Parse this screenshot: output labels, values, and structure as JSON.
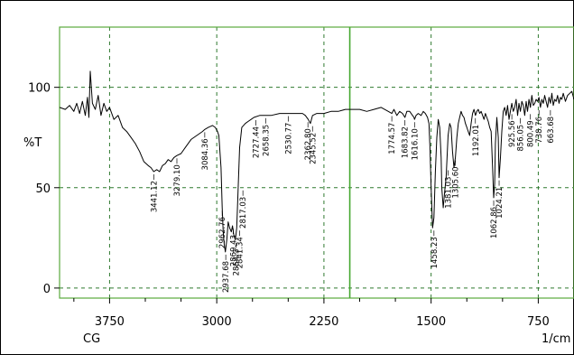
{
  "chart_data": {
    "type": "line",
    "title": "",
    "ylabel": "%T",
    "xlabel_left": "CG",
    "xlabel_right": "1/cm",
    "xlim": [
      4100,
      500
    ],
    "ylim": [
      -5,
      130
    ],
    "x_ticks": [
      3750,
      3000,
      2250,
      1500,
      750
    ],
    "x_tick_labels": [
      "3750",
      "3000",
      "2250",
      "1500",
      "750"
    ],
    "y_ticks": [
      0,
      50,
      100
    ],
    "y_tick_labels": [
      "0",
      "50",
      "100"
    ],
    "grid": true,
    "colors": {
      "spectrum": "#000000",
      "grid": "#2f7a2f",
      "axis": "#5aaa3c",
      "marker": "#46a830"
    },
    "marker_x": 2069,
    "spectrum": {
      "x": [
        4100,
        4060,
        4030,
        4000,
        3980,
        3960,
        3940,
        3920,
        3905,
        3895,
        3885,
        3870,
        3850,
        3830,
        3810,
        3790,
        3770,
        3750,
        3720,
        3690,
        3660,
        3630,
        3600,
        3570,
        3540,
        3510,
        3480,
        3460,
        3441,
        3420,
        3400,
        3380,
        3360,
        3340,
        3320,
        3300,
        3279,
        3250,
        3220,
        3180,
        3140,
        3100,
        3084,
        3060,
        3030,
        3010,
        2995,
        2985,
        2970,
        2962,
        2955,
        2948,
        2940,
        2930,
        2920,
        2910,
        2898,
        2890,
        2880,
        2870,
        2860,
        2850,
        2840,
        2825,
        2800,
        2780,
        2760,
        2740,
        2700,
        2660,
        2620,
        2560,
        2500,
        2450,
        2400,
        2380,
        2360,
        2345,
        2330,
        2300,
        2250,
        2200,
        2150,
        2100,
        2069,
        2000,
        1950,
        1900,
        1850,
        1800,
        1775,
        1760,
        1740,
        1720,
        1700,
        1683,
        1670,
        1650,
        1630,
        1620,
        1616,
        1605,
        1590,
        1570,
        1555,
        1540,
        1525,
        1515,
        1508,
        1500,
        1490,
        1480,
        1470,
        1460,
        1450,
        1440,
        1430,
        1425,
        1415,
        1405,
        1395,
        1381,
        1370,
        1360,
        1350,
        1340,
        1330,
        1320,
        1310,
        1300,
        1290,
        1280,
        1270,
        1260,
        1250,
        1240,
        1230,
        1220,
        1210,
        1200,
        1190,
        1180,
        1170,
        1160,
        1150,
        1140,
        1130,
        1120,
        1110,
        1100,
        1090,
        1080,
        1070,
        1062,
        1055,
        1050,
        1040,
        1030,
        1024,
        1015,
        1005,
        995,
        985,
        975,
        965,
        955,
        945,
        935,
        925,
        915,
        905,
        895,
        885,
        875,
        865,
        855,
        845,
        835,
        825,
        815,
        805,
        795,
        785,
        775,
        765,
        755,
        745,
        735,
        725,
        715,
        705,
        695,
        685,
        675,
        665,
        655,
        645,
        635,
        625,
        615,
        605,
        595,
        585,
        575,
        560,
        545,
        530,
        515,
        500
      ],
      "y": [
        90,
        89,
        91,
        88,
        92,
        87,
        93,
        86,
        95,
        85,
        108,
        92,
        89,
        96,
        86,
        92,
        88,
        90,
        84,
        86,
        80,
        78,
        75,
        72,
        68,
        63,
        61,
        60,
        58,
        59,
        58,
        61,
        62,
        64,
        63,
        65,
        66,
        67,
        70,
        74,
        76,
        78,
        79,
        80,
        81,
        80,
        78,
        76,
        60,
        40,
        28,
        22,
        18,
        24,
        33,
        30,
        28,
        31,
        26,
        24,
        30,
        50,
        70,
        80,
        82,
        83,
        84,
        85,
        86,
        86,
        86,
        87,
        87,
        87,
        87,
        86,
        84,
        82,
        86,
        87,
        87,
        88,
        88,
        89,
        89,
        89,
        88,
        89,
        90,
        88,
        87,
        89,
        86,
        88,
        87,
        85,
        88,
        88,
        86,
        85,
        84,
        86,
        87,
        86,
        88,
        87,
        85,
        82,
        70,
        50,
        30,
        35,
        58,
        75,
        84,
        80,
        65,
        50,
        40,
        48,
        55,
        76,
        82,
        80,
        68,
        60,
        65,
        75,
        82,
        85,
        88,
        86,
        85,
        82,
        80,
        78,
        76,
        82,
        87,
        89,
        86,
        88,
        89,
        87,
        88,
        86,
        84,
        87,
        85,
        83,
        80,
        78,
        60,
        45,
        52,
        72,
        85,
        75,
        55,
        65,
        78,
        88,
        90,
        86,
        91,
        84,
        88,
        92,
        88,
        90,
        94,
        86,
        92,
        88,
        93,
        91,
        86,
        93,
        88,
        94,
        90,
        96,
        91,
        92,
        94,
        93,
        95,
        90,
        94,
        92,
        96,
        93,
        90,
        95,
        92,
        97,
        91,
        94,
        93,
        96,
        92,
        95,
        94,
        97,
        93,
        96,
        97,
        98,
        94
      ]
    },
    "peak_labels": [
      {
        "text": "3441.12",
        "x": 3441,
        "y": 58,
        "side": "below"
      },
      {
        "text": "3279.10",
        "x": 3279,
        "y": 66,
        "side": "below"
      },
      {
        "text": "3084.36",
        "x": 3084,
        "y": 79,
        "side": "below"
      },
      {
        "text": "2962.76",
        "x": 2962,
        "y": 40,
        "side": "below"
      },
      {
        "text": "2937.68",
        "x": 2937,
        "y": 18,
        "side": "below"
      },
      {
        "text": "2869.43",
        "x": 2885,
        "y": 31,
        "side": "below"
      },
      {
        "text": "2854.3",
        "x": 2864,
        "y": 24,
        "side": "below"
      },
      {
        "text": "2841.34",
        "x": 2841,
        "y": 30,
        "side": "below"
      },
      {
        "text": "2817.03",
        "x": 2817,
        "y": 50,
        "side": "below"
      },
      {
        "text": "2727.44",
        "x": 2727,
        "y": 85,
        "side": "below"
      },
      {
        "text": "2658.35",
        "x": 2658,
        "y": 86,
        "side": "below"
      },
      {
        "text": "2530.77",
        "x": 2500,
        "y": 87,
        "side": "below"
      },
      {
        "text": "2362.80",
        "x": 2362,
        "y": 84,
        "side": "below"
      },
      {
        "text": "2345.52",
        "x": 2330,
        "y": 82,
        "side": "below"
      },
      {
        "text": "1774.57",
        "x": 1775,
        "y": 87,
        "side": "below"
      },
      {
        "text": "1683.82",
        "x": 1683,
        "y": 85,
        "side": "below"
      },
      {
        "text": "1616.10",
        "x": 1616,
        "y": 84,
        "side": "below"
      },
      {
        "text": "1458.23",
        "x": 1480,
        "y": 30,
        "side": "below"
      },
      {
        "text": "1381.03",
        "x": 1381,
        "y": 60,
        "side": "below"
      },
      {
        "text": "1305.60",
        "x": 1330,
        "y": 65,
        "side": "below"
      },
      {
        "text": "1192.01",
        "x": 1190,
        "y": 86,
        "side": "below"
      },
      {
        "text": "1062.86",
        "x": 1062,
        "y": 45,
        "side": "below"
      },
      {
        "text": "1024.21",
        "x": 1024,
        "y": 55,
        "side": "below"
      },
      {
        "text": "925.56",
        "x": 935,
        "y": 88,
        "side": "below"
      },
      {
        "text": "856.05",
        "x": 875,
        "y": 86,
        "side": "below"
      },
      {
        "text": "800.49",
        "x": 805,
        "y": 88,
        "side": "below"
      },
      {
        "text": "738.76",
        "x": 745,
        "y": 90,
        "side": "below"
      },
      {
        "text": "663.68",
        "x": 665,
        "y": 90,
        "side": "below"
      }
    ]
  }
}
